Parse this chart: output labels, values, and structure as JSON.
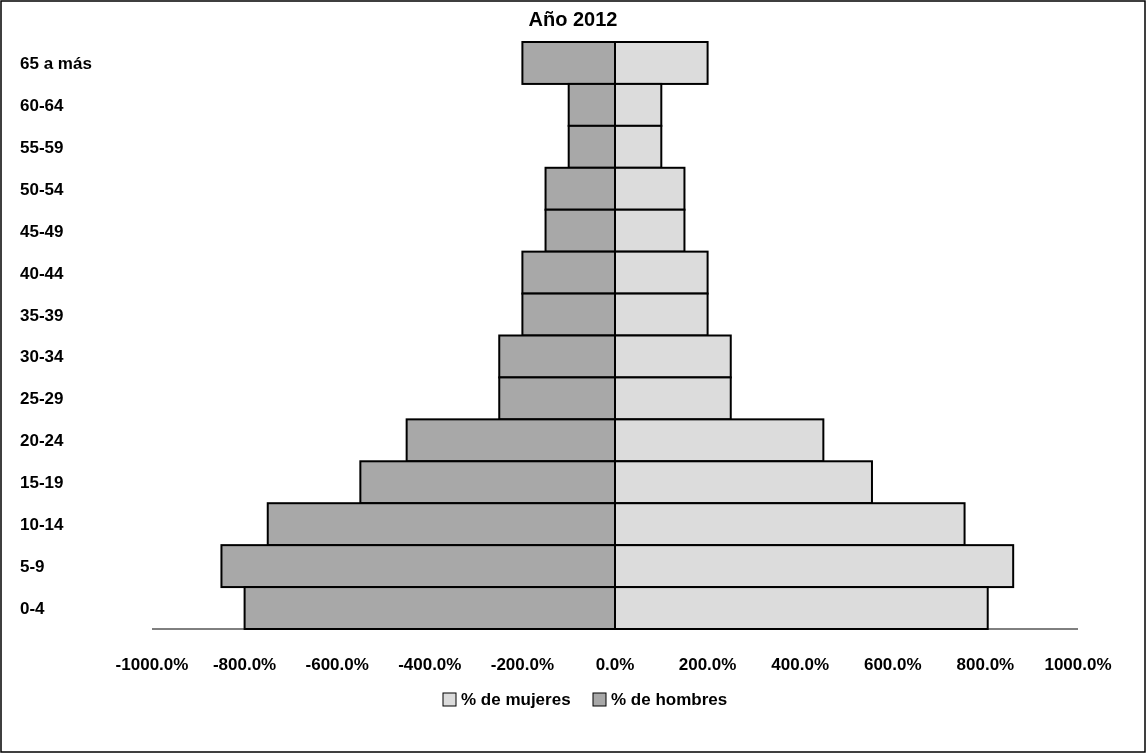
{
  "chart_data": {
    "type": "bar",
    "title": "Año 2012",
    "orientation": "horizontal",
    "categories": [
      "65 a más",
      "60-64",
      "55-59",
      "50-54",
      "45-49",
      "40-44",
      "35-39",
      "30-34",
      "25-29",
      "20-24",
      "15-19",
      "10-14",
      "5-9",
      "0-4"
    ],
    "series": [
      {
        "name": "% de mujeres",
        "color": "#dcdcdc",
        "values": [
          200,
          100,
          100,
          150,
          150,
          200,
          200,
          250,
          250,
          450,
          555,
          755,
          860,
          805
        ]
      },
      {
        "name": "% de hombres",
        "color": "#a8a8a8",
        "values": [
          -200,
          -100,
          -100,
          -150,
          -150,
          -200,
          -200,
          -250,
          -250,
          -450,
          -550,
          -750,
          -850,
          -800
        ]
      }
    ],
    "xlim": [
      -1000,
      1000
    ],
    "xticks": [
      {
        "value": -1000,
        "label": "-1000.0%"
      },
      {
        "value": -800,
        "label": "-800.0%"
      },
      {
        "value": -600,
        "label": "-600.0%"
      },
      {
        "value": -400,
        "label": "-400.0%"
      },
      {
        "value": -200,
        "label": "-200.0%"
      },
      {
        "value": 0,
        "label": "0.0%"
      },
      {
        "value": 200,
        "label": "200.0%"
      },
      {
        "value": 400,
        "label": "400.0%"
      },
      {
        "value": 600,
        "label": "600.0%"
      },
      {
        "value": 800,
        "label": "800.0%"
      },
      {
        "value": 1000,
        "label": "1000.0%"
      }
    ],
    "grid": false,
    "legend": "bottom",
    "stacked": true
  }
}
